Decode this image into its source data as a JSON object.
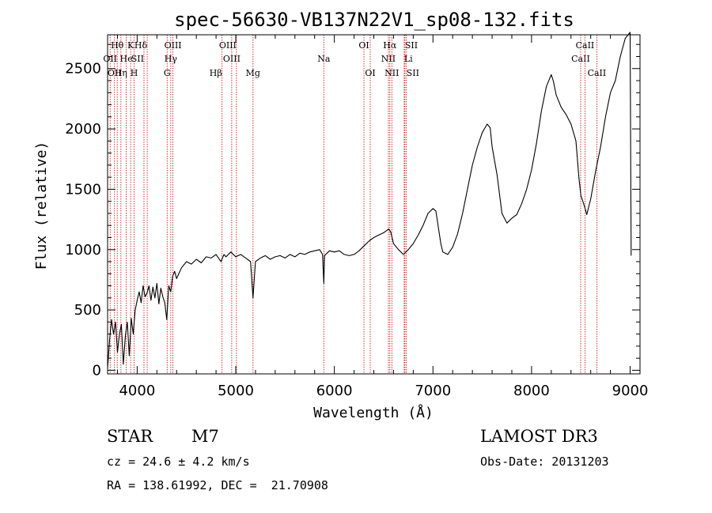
{
  "chart_data": {
    "type": "line",
    "title": "spec-56630-VB137N22V1_sp08-132.fits",
    "xlabel": "Wavelength (Å)",
    "ylabel": "Flux (relative)",
    "xlim": [
      3700,
      9100
    ],
    "ylim": [
      -30,
      2780
    ],
    "xticks": [
      4000,
      5000,
      6000,
      7000,
      8000,
      9000
    ],
    "yticks": [
      0,
      500,
      1000,
      1500,
      2000,
      2500
    ],
    "xtick_labels": [
      "4000",
      "5000",
      "6000",
      "7000",
      "8000",
      "9000"
    ],
    "ytick_labels": [
      "0",
      "500",
      "1000",
      "1500",
      "2000",
      "2500"
    ],
    "line_color": "#000000",
    "marker_color": "#cc0000",
    "spectrum": [
      [
        3700,
        20
      ],
      [
        3720,
        250
      ],
      [
        3740,
        420
      ],
      [
        3760,
        300
      ],
      [
        3780,
        400
      ],
      [
        3800,
        150
      ],
      [
        3820,
        300
      ],
      [
        3840,
        380
      ],
      [
        3860,
        50
      ],
      [
        3880,
        280
      ],
      [
        3900,
        400
      ],
      [
        3920,
        120
      ],
      [
        3940,
        430
      ],
      [
        3960,
        300
      ],
      [
        3980,
        500
      ],
      [
        4000,
        580
      ],
      [
        4020,
        650
      ],
      [
        4040,
        560
      ],
      [
        4060,
        700
      ],
      [
        4080,
        610
      ],
      [
        4100,
        640
      ],
      [
        4120,
        700
      ],
      [
        4140,
        580
      ],
      [
        4160,
        690
      ],
      [
        4180,
        600
      ],
      [
        4200,
        720
      ],
      [
        4220,
        550
      ],
      [
        4240,
        680
      ],
      [
        4260,
        610
      ],
      [
        4280,
        560
      ],
      [
        4300,
        420
      ],
      [
        4320,
        700
      ],
      [
        4340,
        650
      ],
      [
        4360,
        780
      ],
      [
        4380,
        820
      ],
      [
        4400,
        760
      ],
      [
        4450,
        850
      ],
      [
        4500,
        900
      ],
      [
        4550,
        880
      ],
      [
        4600,
        920
      ],
      [
        4650,
        890
      ],
      [
        4700,
        940
      ],
      [
        4750,
        930
      ],
      [
        4800,
        960
      ],
      [
        4850,
        900
      ],
      [
        4880,
        960
      ],
      [
        4900,
        940
      ],
      [
        4950,
        980
      ],
      [
        5000,
        940
      ],
      [
        5050,
        960
      ],
      [
        5100,
        930
      ],
      [
        5150,
        900
      ],
      [
        5175,
        600
      ],
      [
        5200,
        900
      ],
      [
        5250,
        930
      ],
      [
        5300,
        950
      ],
      [
        5350,
        920
      ],
      [
        5400,
        940
      ],
      [
        5450,
        950
      ],
      [
        5500,
        930
      ],
      [
        5550,
        960
      ],
      [
        5600,
        940
      ],
      [
        5650,
        970
      ],
      [
        5700,
        960
      ],
      [
        5750,
        980
      ],
      [
        5800,
        990
      ],
      [
        5850,
        1000
      ],
      [
        5880,
        960
      ],
      [
        5893,
        720
      ],
      [
        5900,
        950
      ],
      [
        5950,
        990
      ],
      [
        6000,
        980
      ],
      [
        6050,
        990
      ],
      [
        6100,
        960
      ],
      [
        6150,
        950
      ],
      [
        6200,
        960
      ],
      [
        6250,
        990
      ],
      [
        6300,
        1030
      ],
      [
        6350,
        1070
      ],
      [
        6400,
        1100
      ],
      [
        6450,
        1120
      ],
      [
        6500,
        1140
      ],
      [
        6550,
        1170
      ],
      [
        6570,
        1150
      ],
      [
        6580,
        1120
      ],
      [
        6600,
        1050
      ],
      [
        6650,
        1000
      ],
      [
        6700,
        960
      ],
      [
        6750,
        1000
      ],
      [
        6800,
        1050
      ],
      [
        6850,
        1120
      ],
      [
        6900,
        1200
      ],
      [
        6950,
        1300
      ],
      [
        7000,
        1340
      ],
      [
        7030,
        1320
      ],
      [
        7050,
        1210
      ],
      [
        7080,
        1050
      ],
      [
        7100,
        980
      ],
      [
        7150,
        960
      ],
      [
        7200,
        1020
      ],
      [
        7250,
        1130
      ],
      [
        7300,
        1300
      ],
      [
        7350,
        1500
      ],
      [
        7400,
        1700
      ],
      [
        7450,
        1850
      ],
      [
        7500,
        1970
      ],
      [
        7550,
        2040
      ],
      [
        7580,
        2010
      ],
      [
        7600,
        1850
      ],
      [
        7650,
        1620
      ],
      [
        7700,
        1300
      ],
      [
        7750,
        1220
      ],
      [
        7800,
        1260
      ],
      [
        7850,
        1290
      ],
      [
        7900,
        1380
      ],
      [
        7950,
        1500
      ],
      [
        8000,
        1660
      ],
      [
        8050,
        1880
      ],
      [
        8100,
        2150
      ],
      [
        8150,
        2350
      ],
      [
        8200,
        2450
      ],
      [
        8220,
        2400
      ],
      [
        8250,
        2280
      ],
      [
        8300,
        2180
      ],
      [
        8350,
        2120
      ],
      [
        8400,
        2040
      ],
      [
        8450,
        1900
      ],
      [
        8480,
        1600
      ],
      [
        8500,
        1450
      ],
      [
        8540,
        1350
      ],
      [
        8560,
        1290
      ],
      [
        8600,
        1420
      ],
      [
        8650,
        1650
      ],
      [
        8700,
        1850
      ],
      [
        8750,
        2100
      ],
      [
        8800,
        2300
      ],
      [
        8850,
        2400
      ],
      [
        8900,
        2600
      ],
      [
        8950,
        2750
      ],
      [
        9000,
        2800
      ],
      [
        9010,
        950
      ]
    ],
    "lines": [
      {
        "wl": 3798,
        "label": "Hθ",
        "row": 0,
        "align": "middle"
      },
      {
        "wl": 3726,
        "label": "OII",
        "row": 1,
        "align": "middle"
      },
      {
        "wl": 3770,
        "label": "OII",
        "row": 2,
        "align": "middle"
      },
      {
        "wl": 3889,
        "label": "He",
        "row": 1,
        "align": "middle"
      },
      {
        "wl": 3835,
        "label": "Hη",
        "row": 2,
        "align": "middle"
      },
      {
        "wl": 3934,
        "label": "K",
        "row": 0,
        "align": "middle"
      },
      {
        "wl": 3969,
        "label": "H",
        "row": 2,
        "align": "middle"
      },
      {
        "wl": 4069,
        "label": "SII",
        "row": 1,
        "align": "end"
      },
      {
        "wl": 4102,
        "label": "Hδ",
        "row": 0,
        "align": "end"
      },
      {
        "wl": 4304,
        "label": "G",
        "row": 2,
        "align": "middle"
      },
      {
        "wl": 4341,
        "label": "Hγ",
        "row": 1,
        "align": "middle"
      },
      {
        "wl": 4363,
        "label": "OIII",
        "row": 0,
        "align": "middle"
      },
      {
        "wl": 4861,
        "label": "Hβ",
        "row": 2,
        "align": "end"
      },
      {
        "wl": 4959,
        "label": "OIII",
        "row": 1,
        "align": "middle"
      },
      {
        "wl": 5007,
        "label": "OIII",
        "row": 0,
        "align": "end"
      },
      {
        "wl": 5175,
        "label": "Mg",
        "row": 2,
        "align": "middle"
      },
      {
        "wl": 5893,
        "label": "Na",
        "row": 1,
        "align": "middle"
      },
      {
        "wl": 6300,
        "label": "OI",
        "row": 0,
        "align": "middle"
      },
      {
        "wl": 6364,
        "label": "OI",
        "row": 2,
        "align": "middle"
      },
      {
        "wl": 6548,
        "label": "NII",
        "row": 1,
        "align": "middle"
      },
      {
        "wl": 6563,
        "label": "Hα",
        "row": 0,
        "align": "middle"
      },
      {
        "wl": 6583,
        "label": "NII",
        "row": 2,
        "align": "middle"
      },
      {
        "wl": 6708,
        "label": "Li",
        "row": 1,
        "align": "start"
      },
      {
        "wl": 6716,
        "label": "SII",
        "row": 0,
        "align": "start"
      },
      {
        "wl": 6731,
        "label": "SII",
        "row": 2,
        "align": "start"
      },
      {
        "wl": 8498,
        "label": "CaII",
        "row": 1,
        "align": "middle"
      },
      {
        "wl": 8542,
        "label": "CaII",
        "row": 0,
        "align": "middle"
      },
      {
        "wl": 8662,
        "label": "CaII",
        "row": 2,
        "align": "middle"
      }
    ]
  },
  "info": {
    "object_type": "STAR",
    "subclass": "M7",
    "survey": "LAMOST DR3",
    "redshift_line": "cz = 24.6 ± 4.2 km/s",
    "obs_date": "Obs-Date: 20131203",
    "coords": "RA = 138.61992, DEC =  21.70908"
  }
}
